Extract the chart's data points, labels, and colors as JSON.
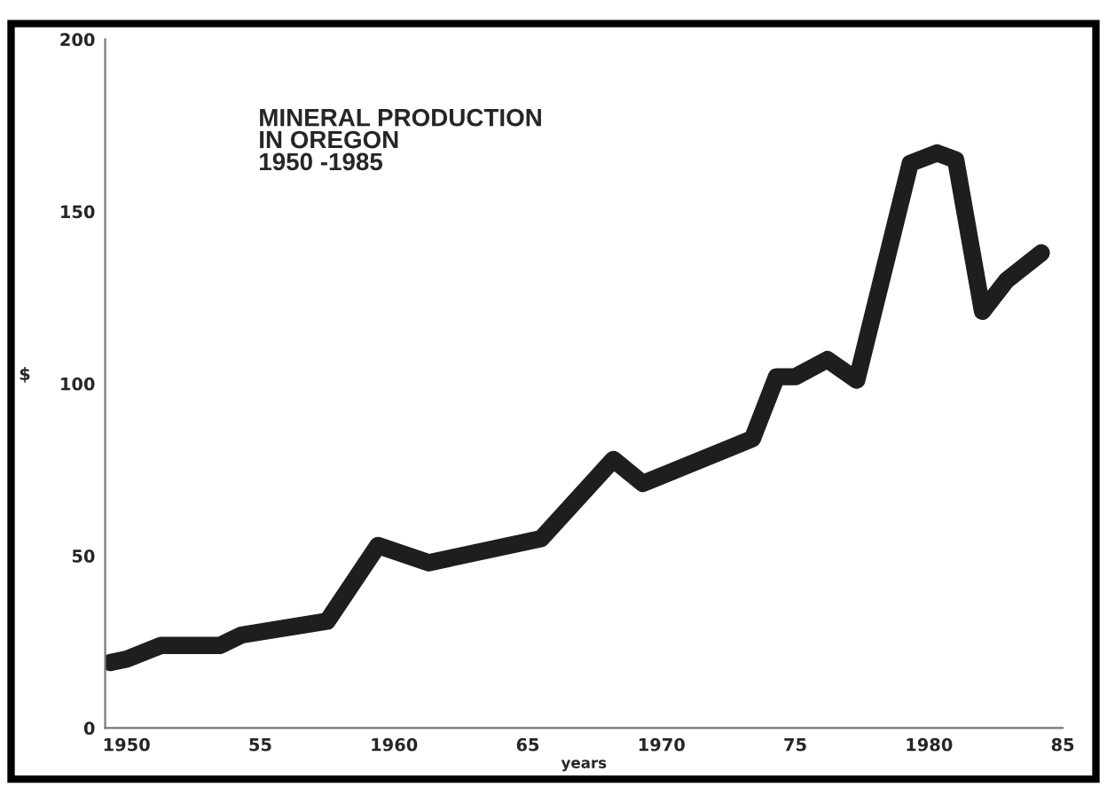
{
  "chart_data": {
    "type": "line",
    "title": "MINERAL PRODUCTION\nIN OREGON\n1950 -1985",
    "xlabel": "years",
    "ylabel": "$",
    "x": [
      1949.4,
      1950.0,
      1951.3,
      1953.5,
      1954.3,
      1957.5,
      1959.4,
      1961.3,
      1965.5,
      1968.2,
      1969.3,
      1973.4,
      1974.3,
      1975.0,
      1976.2,
      1977.3,
      1979.3,
      1980.3,
      1981.0,
      1982.0,
      1982.9,
      1984.2
    ],
    "series": [
      {
        "color": "#1e1e1e",
        "values": [
          19,
          20,
          24,
          24,
          27,
          31,
          53,
          48,
          55,
          78,
          71,
          84,
          102,
          102,
          107,
          101,
          164,
          167,
          165,
          121,
          130,
          138
        ]
      }
    ],
    "xlim": [
      1949.2,
      1985
    ],
    "xticks": [
      {
        "value": 1950,
        "label": "1950"
      },
      {
        "value": 1955,
        "label": "55"
      },
      {
        "value": 1960,
        "label": "1960"
      },
      {
        "value": 1965,
        "label": "65"
      },
      {
        "value": 1970,
        "label": "1970"
      },
      {
        "value": 1975,
        "label": "75"
      },
      {
        "value": 1980,
        "label": "1980"
      },
      {
        "value": 1985,
        "label": "85"
      }
    ],
    "ylim": [
      0,
      200
    ],
    "yticks": [
      0,
      50,
      100,
      150,
      200
    ],
    "grid": false,
    "legend": false,
    "marker": "none",
    "line_style": "solid"
  }
}
